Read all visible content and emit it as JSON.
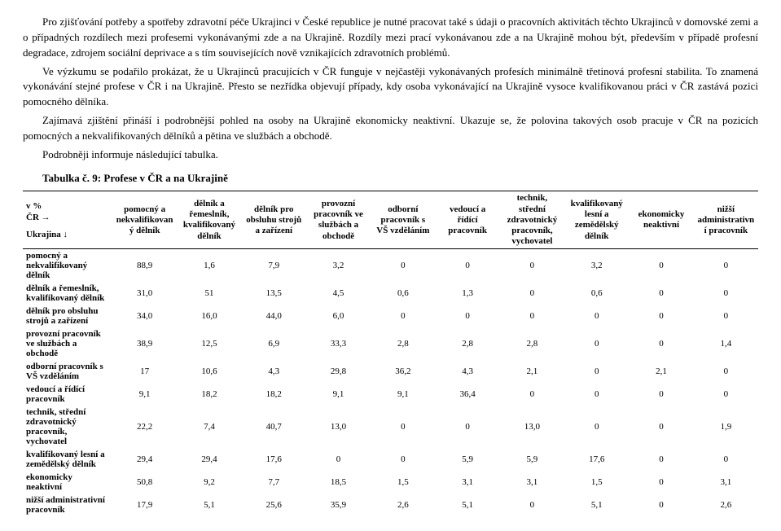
{
  "paragraphs": [
    "Pro zjišťování potřeby a spotřeby zdravotní péče Ukrajinci v České republice je nutné pracovat také s údaji o pracovních aktivitách těchto Ukrajinců v domovské zemi a o případných rozdílech mezi profesemi vykonávanými zde a na Ukrajině. Rozdíly mezi prací vykonávanou zde a na Ukrajině mohou být, především v případě profesní degradace, zdrojem sociální deprivace a s tím souvisejících nově vznikajících zdravotních problémů.",
    "Ve výzkumu se podařilo prokázat, že u Ukrajinců pracujících v ČR funguje v nejčastěji vykonávaných profesích minimálně třetinová profesní stabilita. To znamená vykonávání stejné profese v ČR i na Ukrajině. Přesto se nezřídka objevují případy, kdy osoba vykonávající na Ukrajině vysoce kvalifikovanou práci v ČR zastává pozici pomocného dělníka.",
    "Zajímavá zjištění přináší i podrobnější pohled na osoby na Ukrajině ekonomicky neaktivní. Ukazuje se, že polovina takových osob pracuje v ČR na pozicích pomocných a nekvalifikovaných dělníků a pětina ve službách a obchodě.",
    "Podrobněji informuje následující tabulka."
  ],
  "table_caption": "Tabulka č. 9: Profese v ČR a na Ukrajině",
  "corner": {
    "line1": "v %",
    "line2": "ČR →",
    "line3": "Ukrajina ↓"
  },
  "columns": [
    "pomocný a nekvalifikovaný dělník",
    "dělník a řemeslník, kvalifikovaný dělník",
    "dělník pro obsluhu strojů a zařízení",
    "provozní pracovník ve službách a obchodě",
    "odborní pracovník s VŠ vzděláním",
    "vedoucí a řídící pracovník",
    "technik, střední zdravotnický pracovník, vychovatel",
    "kvalifikovaný lesní a zemědělský dělník",
    "ekonomicky neaktivní",
    "nižší administrativní pracovník"
  ],
  "rows": [
    {
      "label": "pomocný a nekvalifikovaný dělník",
      "values": [
        "88,9",
        "1,6",
        "7,9",
        "3,2",
        "0",
        "0",
        "0",
        "3,2",
        "0",
        "0"
      ]
    },
    {
      "label": "dělník a řemeslník, kvalifikovaný dělník",
      "values": [
        "31,0",
        "51",
        "13,5",
        "4,5",
        "0,6",
        "1,3",
        "0",
        "0,6",
        "0",
        "0"
      ]
    },
    {
      "label": "dělník pro obsluhu strojů a zařízení",
      "values": [
        "34,0",
        "16,0",
        "44,0",
        "6,0",
        "0",
        "0",
        "0",
        "0",
        "0",
        "0"
      ]
    },
    {
      "label": "provozní pracovník ve službách a obchodě",
      "values": [
        "38,9",
        "12,5",
        "6,9",
        "33,3",
        "2,8",
        "2,8",
        "2,8",
        "0",
        "0",
        "1,4"
      ]
    },
    {
      "label": "odborní pracovník s VŠ vzděláním",
      "values": [
        "17",
        "10,6",
        "4,3",
        "29,8",
        "36,2",
        "4,3",
        "2,1",
        "0",
        "2,1",
        "0"
      ]
    },
    {
      "label": "vedoucí a řídící pracovník",
      "values": [
        "9,1",
        "18,2",
        "18,2",
        "9,1",
        "9,1",
        "36,4",
        "0",
        "0",
        "0",
        "0"
      ]
    },
    {
      "label": "technik, střední zdravotnický pracovník, vychovatel",
      "values": [
        "22,2",
        "7,4",
        "40,7",
        "13,0",
        "0",
        "0",
        "13,0",
        "0",
        "0",
        "1,9"
      ]
    },
    {
      "label": "kvalifikovaný lesní a zemědělský dělník",
      "values": [
        "29,4",
        "29,4",
        "17,6",
        "0",
        "0",
        "5,9",
        "5,9",
        "17,6",
        "0",
        "0"
      ]
    },
    {
      "label": "ekonomicky neaktivní",
      "values": [
        "50,8",
        "9,2",
        "7,7",
        "18,5",
        "1,5",
        "3,1",
        "3,1",
        "1,5",
        "0",
        "3,1"
      ]
    },
    {
      "label": "nižší administrativní pracovník",
      "values": [
        "17,9",
        "5,1",
        "25,6",
        "35,9",
        "2,6",
        "5,1",
        "0",
        "5,1",
        "0",
        "2,6"
      ]
    }
  ]
}
